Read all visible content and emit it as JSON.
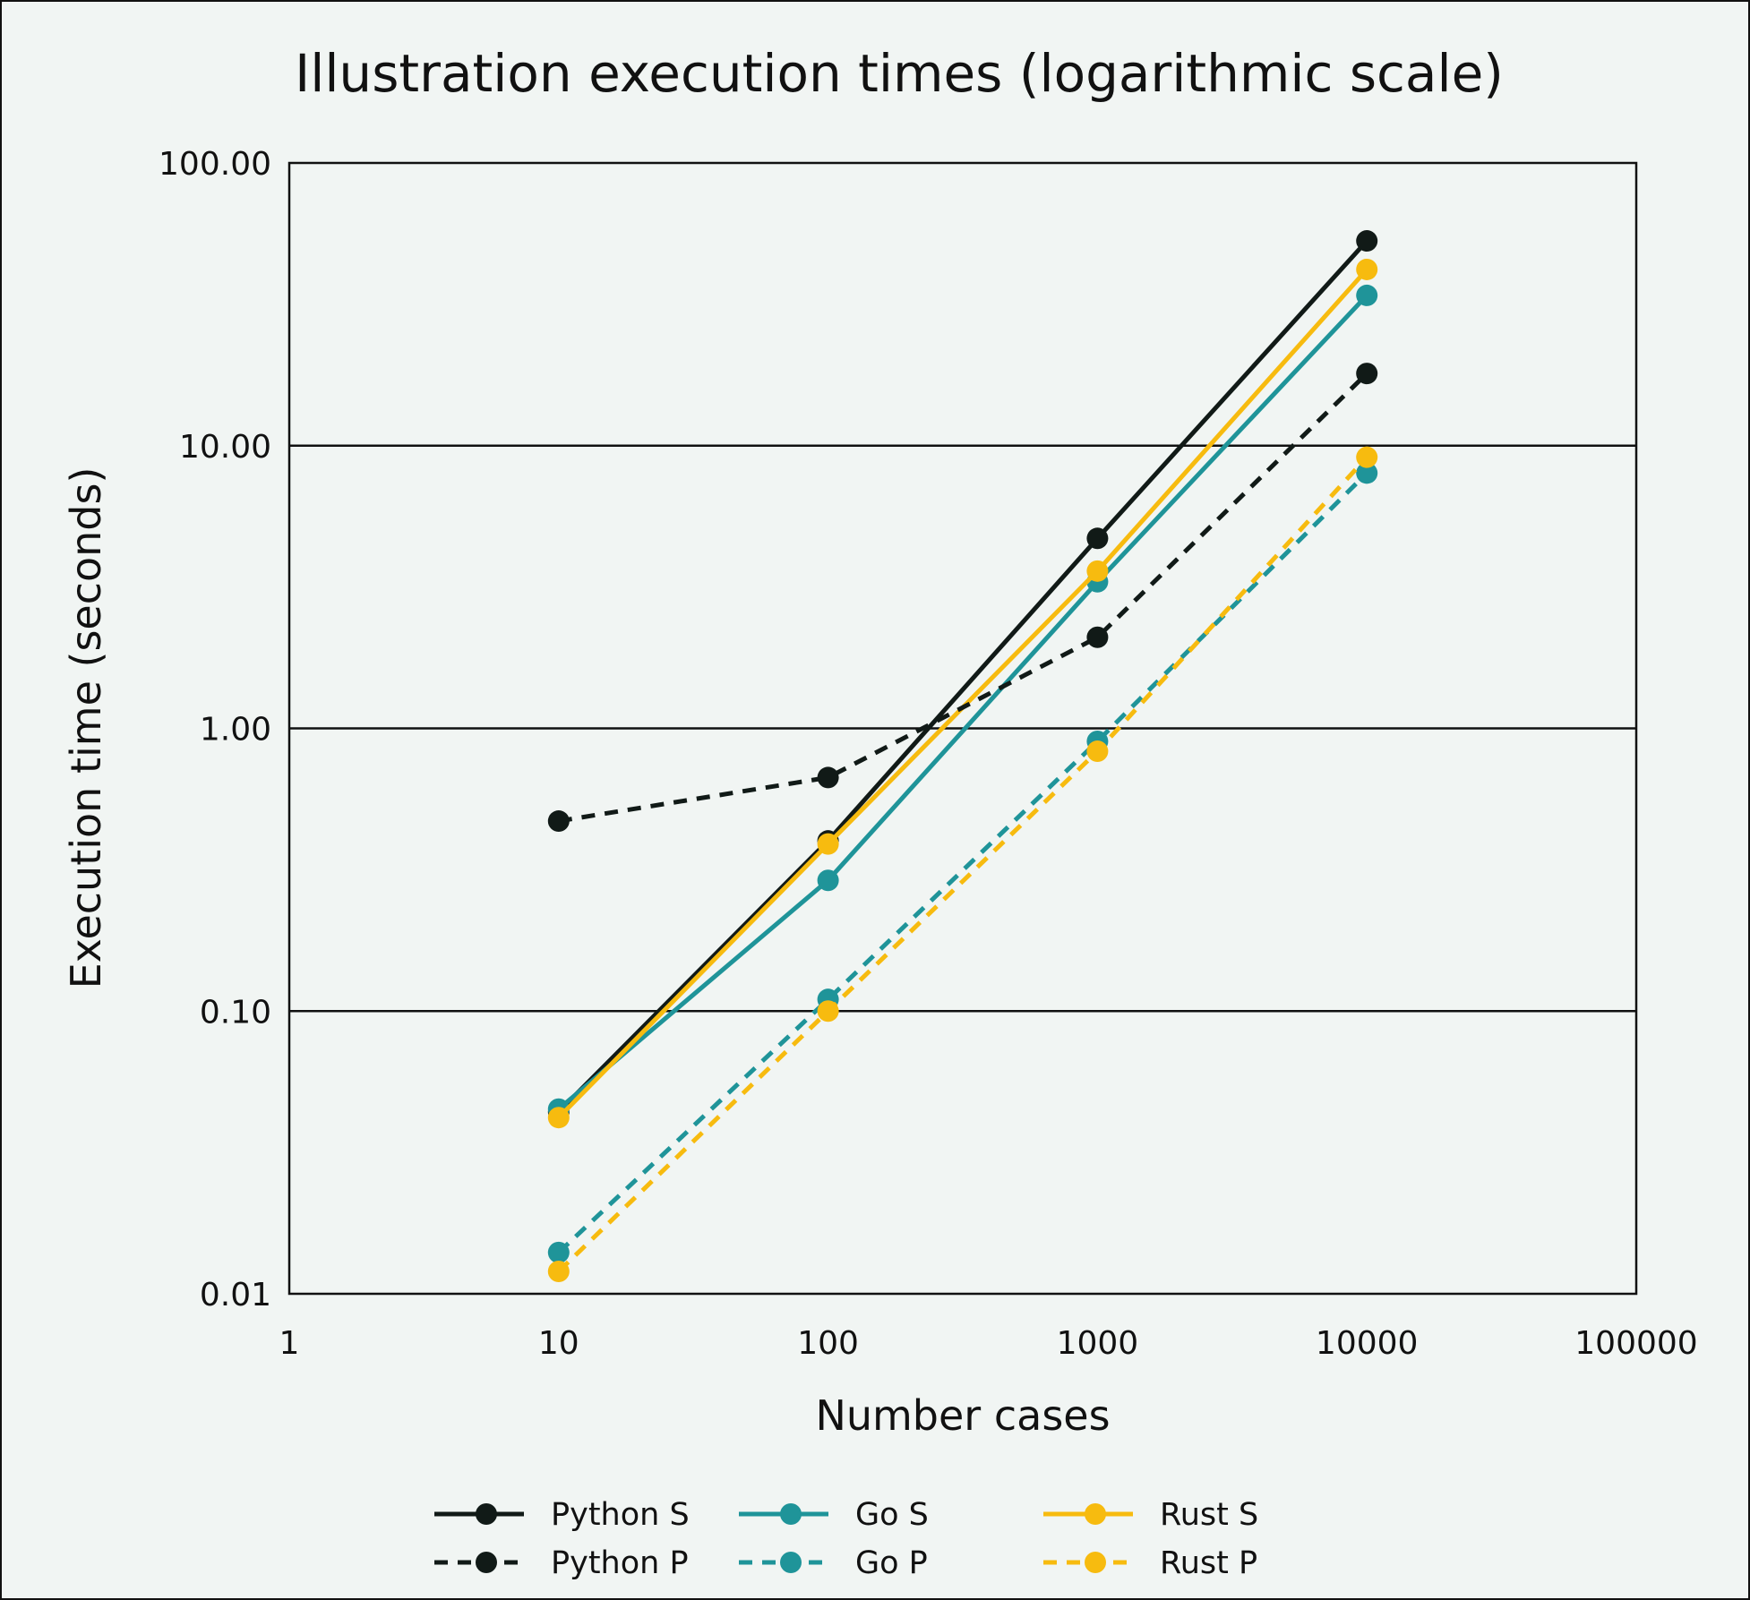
{
  "chart_data": {
    "type": "line",
    "title": "Illustration execution times (logarithmic scale)",
    "xlabel": "Number cases",
    "ylabel": "Execution time (seconds)",
    "x_scale": "log",
    "y_scale": "log",
    "xlim": [
      1,
      100000
    ],
    "ylim": [
      0.01,
      100
    ],
    "x_ticks": [
      "1",
      "10",
      "100",
      "1000",
      "10000",
      "100000"
    ],
    "y_ticks": [
      "0.01",
      "0.10",
      "1.00",
      "10.00",
      "100.00"
    ],
    "x": [
      10,
      100,
      1000,
      10000
    ],
    "grid": "horizontal major",
    "legend": "bottom",
    "series": [
      {
        "name": "Python S",
        "color": "#111a17",
        "style": "solid",
        "values": [
          0.044,
          0.4,
          4.7,
          53
        ]
      },
      {
        "name": "Go S",
        "color": "#1f9499",
        "style": "solid",
        "values": [
          0.045,
          0.29,
          3.3,
          34
        ]
      },
      {
        "name": "Rust S",
        "color": "#f7bb0f",
        "style": "solid",
        "values": [
          0.042,
          0.39,
          3.6,
          42
        ]
      },
      {
        "name": "Python P",
        "color": "#111a17",
        "style": "dashed",
        "values": [
          0.47,
          0.67,
          2.1,
          18
        ]
      },
      {
        "name": "Go P",
        "color": "#1f9499",
        "style": "dashed",
        "values": [
          0.014,
          0.11,
          0.9,
          8.0
        ]
      },
      {
        "name": "Rust P",
        "color": "#f7bb0f",
        "style": "dashed",
        "values": [
          0.012,
          0.1,
          0.83,
          9.1
        ]
      }
    ]
  }
}
